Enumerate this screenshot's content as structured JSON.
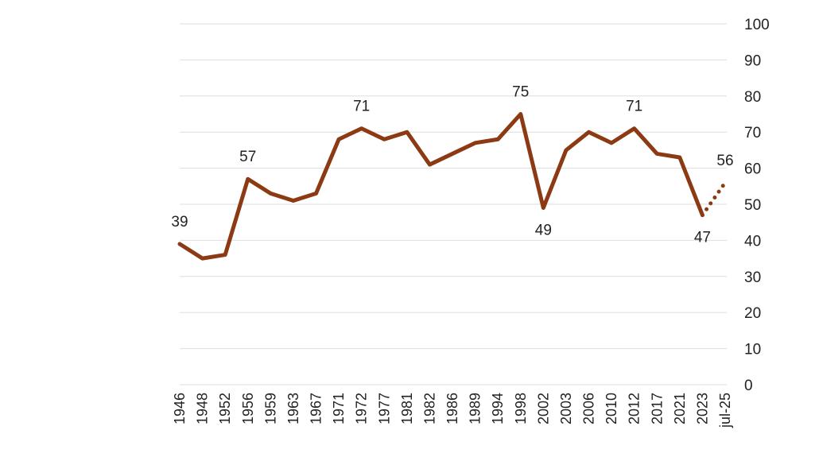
{
  "chart_data": {
    "type": "line",
    "title": "",
    "xlabel": "",
    "ylabel": "",
    "categories": [
      "1946",
      "1948",
      "1952",
      "1956",
      "1959",
      "1963",
      "1967",
      "1971",
      "1972",
      "1977",
      "1981",
      "1982",
      "1986",
      "1989",
      "1994",
      "1998",
      "2002",
      "2003",
      "2006",
      "2010",
      "2012",
      "2017",
      "2021",
      "2023",
      "jul-25"
    ],
    "series": [
      {
        "values": [
          39,
          35,
          36,
          57,
          53,
          51,
          53,
          68,
          71,
          68,
          70,
          61,
          64,
          67,
          68,
          75,
          49,
          65,
          70,
          67,
          71,
          64,
          63,
          47,
          56
        ],
        "color": "#8B3A13",
        "solid_until_index": 23,
        "projected_style": "dotted"
      }
    ],
    "data_labels": [
      {
        "index": 0,
        "text": "39",
        "position": "above"
      },
      {
        "index": 3,
        "text": "57",
        "position": "above"
      },
      {
        "index": 8,
        "text": "71",
        "position": "above"
      },
      {
        "index": 15,
        "text": "75",
        "position": "above"
      },
      {
        "index": 16,
        "text": "49",
        "position": "below"
      },
      {
        "index": 20,
        "text": "71",
        "position": "above"
      },
      {
        "index": 23,
        "text": "47",
        "position": "below"
      },
      {
        "index": 24,
        "text": "56",
        "position": "above"
      }
    ],
    "yticks": [
      "0",
      "10",
      "20",
      "30",
      "40",
      "50",
      "60",
      "70",
      "80",
      "90",
      "100"
    ],
    "ylim": [
      0,
      100
    ],
    "y_axis_position": "right",
    "grid": true,
    "legend": "none"
  }
}
